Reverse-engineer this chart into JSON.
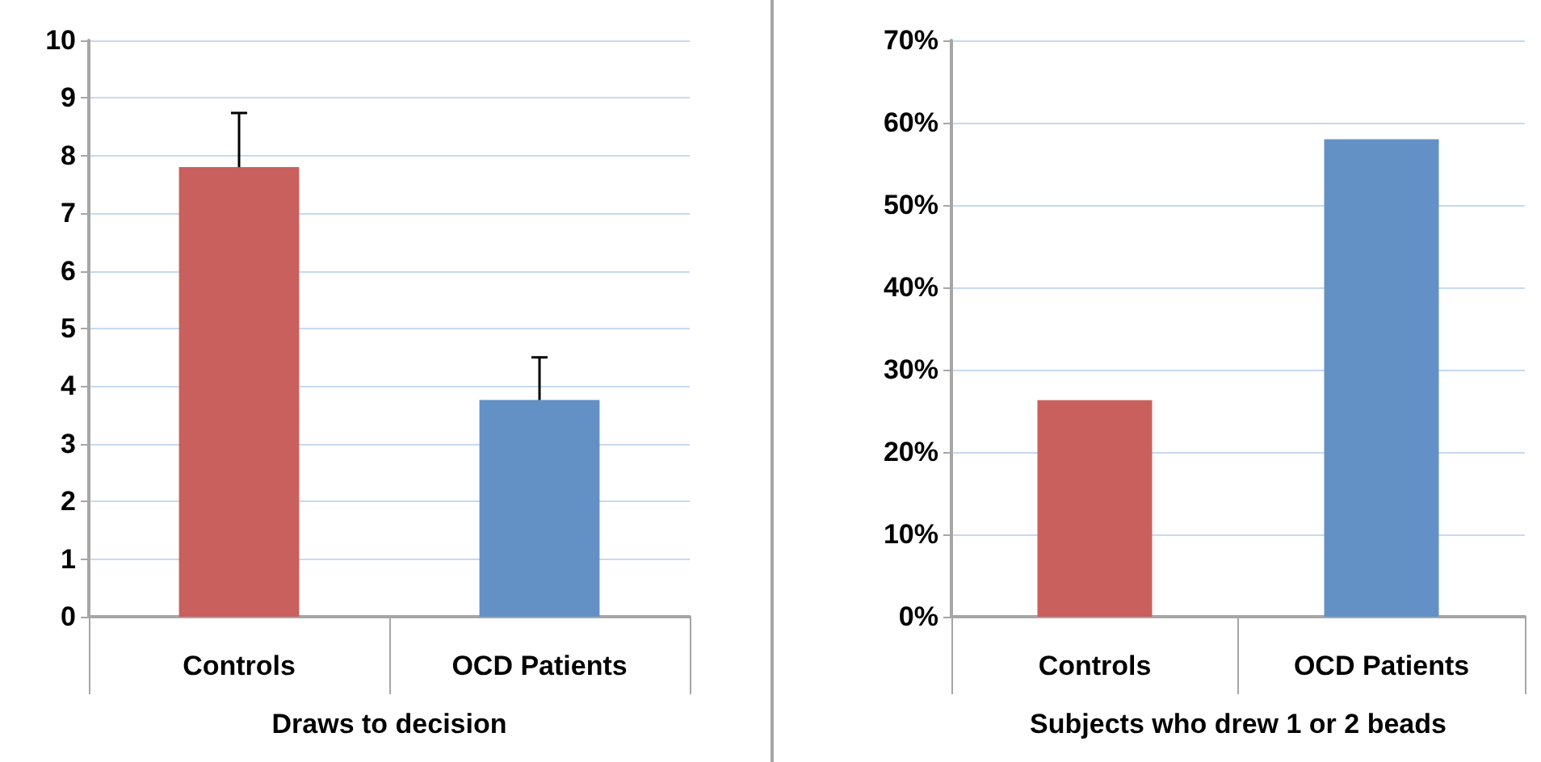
{
  "chart_data": [
    {
      "type": "bar",
      "xlabel": "Draws to decision",
      "categories": [
        "Controls",
        "OCD Patients"
      ],
      "values": [
        7.8,
        3.76
      ],
      "colors": [
        "#c9605d",
        "#6391c6"
      ],
      "errors": [
        [
          7.8,
          8.74
        ],
        [
          3.76,
          4.5
        ]
      ],
      "ylim": [
        0,
        10
      ],
      "yticks": [
        0,
        1,
        2,
        3,
        4,
        5,
        6,
        7,
        8,
        9,
        10
      ],
      "grid": "y"
    },
    {
      "type": "bar",
      "xlabel": "Subjects who drew 1 or 2 beads",
      "categories": [
        "Controls",
        "OCD Patients"
      ],
      "values": [
        26.3,
        58
      ],
      "colors": [
        "#c9605d",
        "#6391c6"
      ],
      "ylim": [
        0,
        70
      ],
      "yticks": [
        {
          "value": 0,
          "label": "0%"
        },
        {
          "value": 10,
          "label": "10%"
        },
        {
          "value": 20,
          "label": "20%"
        },
        {
          "value": 30,
          "label": "30%"
        },
        {
          "value": 40,
          "label": "40%"
        },
        {
          "value": 50,
          "label": "50%"
        },
        {
          "value": 60,
          "label": "60%"
        },
        {
          "value": 70,
          "label": "70%"
        }
      ],
      "grid": "y"
    }
  ]
}
